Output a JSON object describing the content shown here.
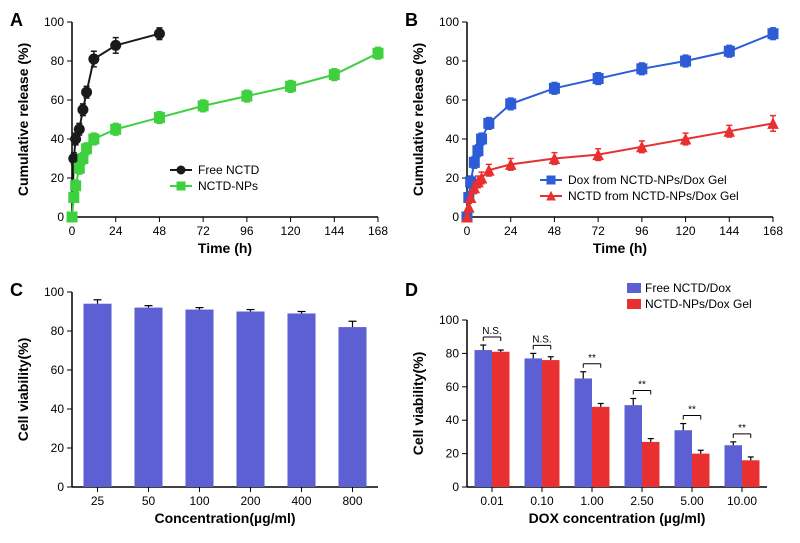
{
  "panelA": {
    "label": "A",
    "xlabel": "Time (h)",
    "ylabel": "Cumulative release (%)",
    "xlim": [
      0,
      168
    ],
    "ylim": [
      0,
      100
    ],
    "xticks": [
      0,
      24,
      48,
      72,
      96,
      120,
      144,
      168
    ],
    "yticks": [
      0,
      20,
      40,
      60,
      80,
      100
    ],
    "series": [
      {
        "name": "Free NCTD",
        "color": "#1a1a1a",
        "marker": "circle",
        "x": [
          0,
          1,
          2,
          4,
          6,
          8,
          12,
          24,
          48
        ],
        "y": [
          0,
          30,
          40,
          45,
          55,
          64,
          81,
          88,
          94
        ],
        "err": [
          0,
          3,
          3,
          3,
          3,
          3,
          4,
          4,
          3
        ]
      },
      {
        "name": "NCTD-NPs",
        "color": "#3fd03f",
        "marker": "square",
        "x": [
          0,
          1,
          2,
          4,
          6,
          8,
          12,
          24,
          48,
          72,
          96,
          120,
          144,
          168
        ],
        "y": [
          0,
          10,
          16,
          25,
          30,
          35,
          40,
          45,
          51,
          57,
          62,
          67,
          73,
          84
        ],
        "err": [
          0,
          2,
          3,
          3,
          3,
          3,
          3,
          3,
          3,
          3,
          3,
          3,
          3,
          3
        ]
      }
    ],
    "line_width": 2,
    "marker_size": 5
  },
  "panelB": {
    "label": "B",
    "xlabel": "Time (h)",
    "ylabel": "Cumulative release (%)",
    "xlim": [
      0,
      168
    ],
    "ylim": [
      0,
      100
    ],
    "xticks": [
      0,
      24,
      48,
      72,
      96,
      120,
      144,
      168
    ],
    "yticks": [
      0,
      20,
      40,
      60,
      80,
      100
    ],
    "series": [
      {
        "name": "Dox from NCTD-NPs/Dox Gel",
        "color": "#2c5cd6",
        "marker": "square",
        "x": [
          0,
          1,
          2,
          4,
          6,
          8,
          12,
          24,
          48,
          72,
          96,
          120,
          144,
          168
        ],
        "y": [
          0,
          10,
          18,
          28,
          34,
          40,
          48,
          58,
          66,
          71,
          76,
          80,
          85,
          94
        ],
        "err": [
          0,
          3,
          3,
          3,
          3,
          3,
          3,
          3,
          3,
          3,
          3,
          3,
          3,
          3
        ]
      },
      {
        "name": "NCTD from NCTD-NPs/Dox Gel",
        "color": "#e93030",
        "marker": "triangle",
        "x": [
          0,
          1,
          2,
          4,
          6,
          8,
          12,
          24,
          48,
          72,
          96,
          120,
          144,
          168
        ],
        "y": [
          0,
          5,
          10,
          15,
          18,
          20,
          24,
          27,
          30,
          32,
          36,
          40,
          44,
          48
        ],
        "err": [
          0,
          2,
          2,
          3,
          3,
          3,
          3,
          3,
          3,
          3,
          3,
          3,
          3,
          4
        ]
      }
    ],
    "line_width": 2,
    "marker_size": 5
  },
  "panelC": {
    "label": "C",
    "xlabel": "Concentration(µg/ml)",
    "ylabel": "Cell viability(%)",
    "ylim": [
      0,
      100
    ],
    "yticks": [
      0,
      20,
      40,
      60,
      80,
      100
    ],
    "categories": [
      "25",
      "50",
      "100",
      "200",
      "400",
      "800"
    ],
    "values": [
      94,
      92,
      91,
      90,
      89,
      82
    ],
    "err": [
      2,
      1,
      1,
      1,
      1,
      3
    ],
    "bar_color": "#5c60d2",
    "bar_width": 0.55
  },
  "panelD": {
    "label": "D",
    "xlabel": "DOX concentration (µg/ml)",
    "ylabel": "Cell viability(%)",
    "ylim": [
      0,
      100
    ],
    "yticks": [
      0,
      20,
      40,
      60,
      80,
      100
    ],
    "categories": [
      "0.01",
      "0.10",
      "1.00",
      "2.50",
      "5.00",
      "10.00"
    ],
    "groups": [
      {
        "name": "Free NCTD/Dox",
        "color": "#5c60d2",
        "values": [
          82,
          77,
          65,
          49,
          34,
          25
        ],
        "err": [
          3,
          3,
          4,
          4,
          4,
          2
        ]
      },
      {
        "name": "NCTD-NPs/Dox Gel",
        "color": "#e93030",
        "values": [
          81,
          76,
          48,
          27,
          20,
          16
        ],
        "err": [
          1,
          2,
          2,
          2,
          2,
          2
        ]
      }
    ],
    "significance": [
      "N.S.",
      "N.S.",
      "**",
      "**",
      "**",
      "**"
    ],
    "bar_width": 0.35
  },
  "styling": {
    "background_color": "#ffffff",
    "axis_color": "#000000",
    "tick_fontsize": 12,
    "label_fontsize": 14,
    "panel_label_fontsize": 18,
    "panel_label_fontweight": "bold",
    "error_cap_width": 6
  }
}
